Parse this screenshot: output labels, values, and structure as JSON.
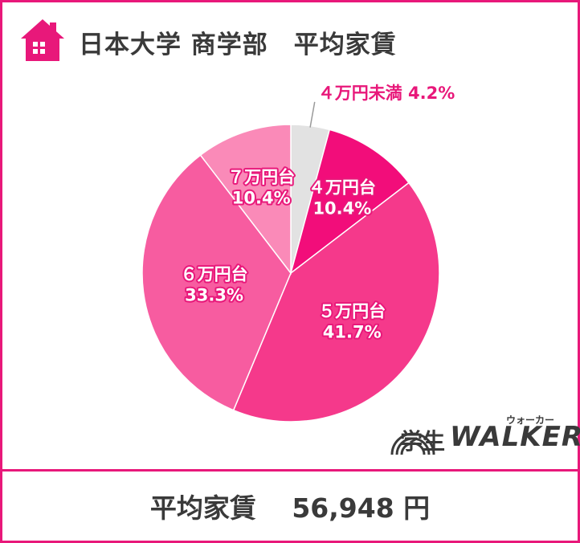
{
  "header": {
    "title": "日本大学 商学部　平均家賃"
  },
  "footer": {
    "label": "平均家賃",
    "value": "56,948 円"
  },
  "logo": {
    "text": "学生",
    "brand": "WALKER",
    "kana": "ウォーカー"
  },
  "colors": {
    "frame": "#e8187a",
    "text": "#3a3a3a"
  },
  "chart_data": {
    "type": "pie",
    "title": "",
    "slices": [
      {
        "label": "４万円未満",
        "value": 4.2,
        "display": "4.2%",
        "color": "#e2e2e2"
      },
      {
        "label": "４万円台",
        "value": 10.4,
        "display": "10.4%",
        "color": "#f20d7a"
      },
      {
        "label": "５万円台",
        "value": 41.7,
        "display": "41.7%",
        "color": "#f5398b"
      },
      {
        "label": "６万円台",
        "value": 33.3,
        "display": "33.3%",
        "color": "#f75ca0"
      },
      {
        "label": "７万円台",
        "value": 10.4,
        "display": "10.4%",
        "color": "#fa8ab8"
      }
    ]
  }
}
